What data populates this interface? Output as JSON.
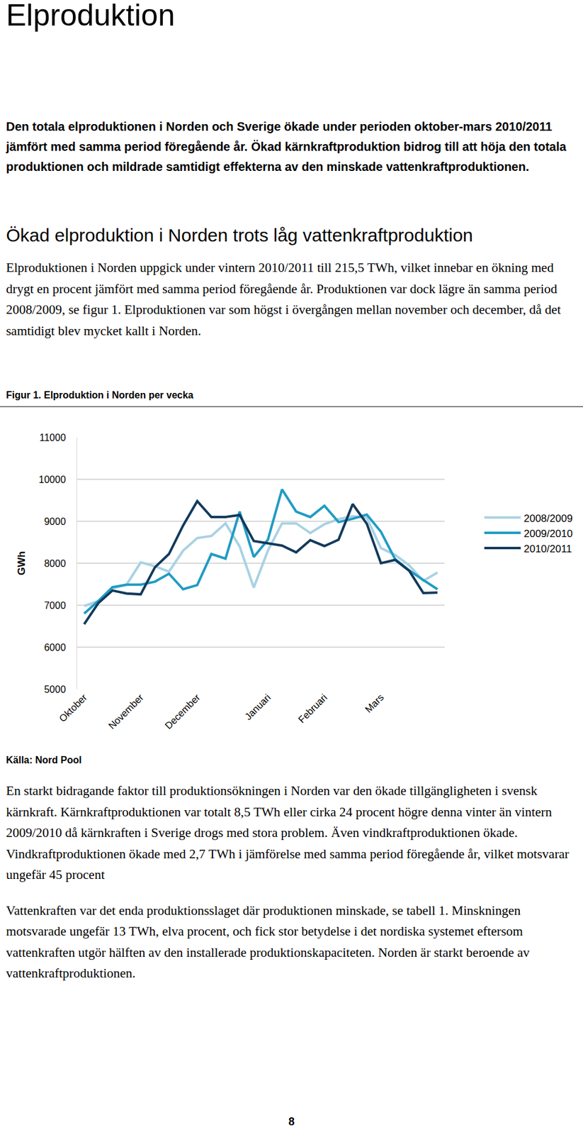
{
  "heading": "Elproduktion",
  "intro": "Den totala elproduktionen i Norden och Sverige ökade under perioden oktober-mars 2010/2011 jämfört med samma period föregående år. Ökad kärnkraftproduktion bidrog till att höja den totala produktionen och mildrade samtidigt effekterna av den minskade vattenkraftproduktionen.",
  "section_title": "Ökad elproduktion i Norden trots låg vattenkraftproduktion",
  "paragraph_1": "Elproduktionen i Norden uppgick under vintern 2010/2011 till 215,5 TWh, vilket innebar en ökning med drygt en procent jämfört med samma period föregående år. Produktionen var dock lägre än samma period 2008/2009, se figur 1. Elproduktionen var som högst i övergången mellan november och december, då det samtidigt blev mycket kallt i Norden.",
  "figure_caption": "Figur 1. Elproduktion i Norden per vecka",
  "chart_data": {
    "type": "line",
    "y_label": "GWh",
    "categories": [
      "Oktober",
      null,
      null,
      null,
      "November",
      null,
      null,
      null,
      "December",
      null,
      null,
      null,
      null,
      "Januari",
      null,
      null,
      null,
      "Februari",
      null,
      null,
      null,
      "Mars",
      null,
      null,
      null,
      null
    ],
    "series": [
      {
        "name": "2008/2009",
        "color": "#a9d2e3",
        "values": [
          6980,
          7100,
          7400,
          7490,
          8020,
          7930,
          7800,
          8300,
          8600,
          8650,
          8950,
          8400,
          7420,
          8300,
          8950,
          8950,
          8720,
          8930,
          9050,
          9120,
          9080,
          8360,
          8200,
          7950,
          7580,
          7780
        ]
      },
      {
        "name": "2009/2010",
        "color": "#1f9cc4",
        "values": [
          6800,
          7100,
          7430,
          7490,
          7490,
          7560,
          7750,
          7380,
          7480,
          8220,
          8110,
          9230,
          8150,
          8560,
          9760,
          9230,
          9100,
          9370,
          8980,
          9060,
          9160,
          8750,
          8100,
          7830,
          7600,
          7380
        ]
      },
      {
        "name": "2010/2011",
        "color": "#123a5c",
        "values": [
          6550,
          7050,
          7350,
          7280,
          7260,
          7900,
          8220,
          8900,
          9480,
          9100,
          9100,
          9150,
          8530,
          8470,
          8420,
          8260,
          8550,
          8410,
          8560,
          9410,
          8940,
          8000,
          8080,
          7820,
          7290,
          7300
        ]
      }
    ],
    "ylim": [
      5000,
      11000
    ],
    "yticks": [
      5000,
      6000,
      7000,
      8000,
      9000,
      10000,
      11000
    ],
    "grid": true,
    "legend": "right"
  },
  "source": "Källa: Nord Pool",
  "paragraph_2": "En starkt bidragande faktor till produktionsökningen i Norden var den ökade tillgängligheten i svensk kärnkraft. Kärnkraftproduktionen var totalt 8,5 TWh eller cirka 24 procent högre denna vinter än vintern 2009/2010 då kärnkraften i Sverige drogs med stora problem. Även vindkraftproduktionen ökade. Vindkraftproduktionen ökade med 2,7 TWh i jämförelse med samma period föregående år, vilket motsvarar ungefär 45 procent",
  "paragraph_3": "Vattenkraften var det enda produktionsslaget där produktionen minskade, se tabell 1. Minskningen motsvarade ungefär 13 TWh, elva procent, och fick stor betydelse i det nordiska systemet eftersom vattenkraften utgör hälften av den installerade produktionskapaciteten. Norden är starkt beroende av vattenkraftproduktionen.",
  "page_number": "8"
}
